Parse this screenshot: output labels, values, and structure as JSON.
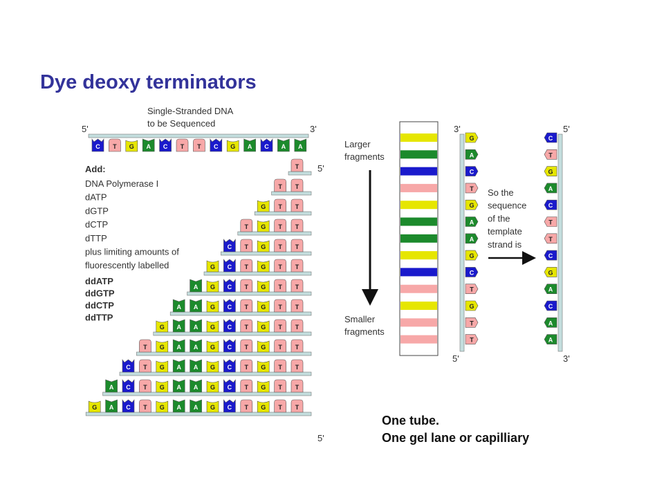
{
  "slide": {
    "title": "Dye deoxy terminators",
    "caption": [
      "One tube.",
      "One gel lane or capilliary"
    ]
  },
  "colors": {
    "A": "#1c8a2c",
    "G": "#e6e600",
    "C": "#1a1acc",
    "T": "#f7a8a8",
    "strand": "#c4dede",
    "title": "#33339a"
  },
  "diagram": {
    "template_heading": [
      "Single-Stranded DNA",
      "to be Sequenced"
    ],
    "template_end_5": "5'",
    "template_end_3": "3'",
    "template_sequence": [
      "C",
      "T",
      "G",
      "A",
      "C",
      "T",
      "T",
      "C",
      "G",
      "A",
      "C",
      "A",
      "A"
    ],
    "fragments_end_5": "5'",
    "fragments": [
      [
        "T"
      ],
      [
        "T",
        "T"
      ],
      [
        "G",
        "T",
        "T"
      ],
      [
        "T",
        "G",
        "T",
        "T"
      ],
      [
        "C",
        "T",
        "G",
        "T",
        "T"
      ],
      [
        "G",
        "C",
        "T",
        "G",
        "T",
        "T"
      ],
      [
        "A",
        "G",
        "C",
        "T",
        "G",
        "T",
        "T"
      ],
      [
        "A",
        "A",
        "G",
        "C",
        "T",
        "G",
        "T",
        "T"
      ],
      [
        "G",
        "A",
        "A",
        "G",
        "C",
        "T",
        "G",
        "T",
        "T"
      ],
      [
        "T",
        "G",
        "A",
        "A",
        "G",
        "C",
        "T",
        "G",
        "T",
        "T"
      ],
      [
        "C",
        "T",
        "G",
        "A",
        "A",
        "G",
        "C",
        "T",
        "G",
        "T",
        "T"
      ],
      [
        "A",
        "C",
        "T",
        "G",
        "A",
        "A",
        "G",
        "C",
        "T",
        "G",
        "T",
        "T"
      ],
      [
        "G",
        "A",
        "C",
        "T",
        "G",
        "A",
        "A",
        "G",
        "C",
        "T",
        "G",
        "T",
        "T"
      ]
    ],
    "add_heading": "Add:",
    "add_items": [
      "DNA Polymerase I",
      "dATP",
      "dGTP",
      "dCTP",
      "dTTP",
      "plus limiting amounts of",
      "fluorescently labelled"
    ],
    "dd_items": [
      {
        "label": "ddATP",
        "base": "A"
      },
      {
        "label": "ddGTP",
        "base": "G"
      },
      {
        "label": "ddCTP",
        "base": "C"
      },
      {
        "label": "ddTTP",
        "base": "T"
      }
    ],
    "gel": {
      "larger_label": [
        "Larger",
        "fragments"
      ],
      "smaller_label": [
        "Smaller",
        "fragments"
      ],
      "bands": [
        "G",
        "A",
        "C",
        "T",
        "G",
        "A",
        "A",
        "G",
        "C",
        "T",
        "G",
        "T",
        "T"
      ]
    },
    "read_strand": {
      "end_3": "3'",
      "end_5": "5'",
      "sequence": [
        "G",
        "A",
        "C",
        "T",
        "G",
        "A",
        "A",
        "G",
        "C",
        "T",
        "G",
        "T",
        "T"
      ]
    },
    "conclusion": [
      "So the",
      "sequence",
      "of the",
      "template",
      "strand is"
    ],
    "template_strand": {
      "end_5": "5'",
      "end_3": "3'",
      "sequence": [
        "C",
        "T",
        "G",
        "A",
        "C",
        "T",
        "T",
        "C",
        "G",
        "A",
        "C",
        "A",
        "A"
      ]
    }
  }
}
